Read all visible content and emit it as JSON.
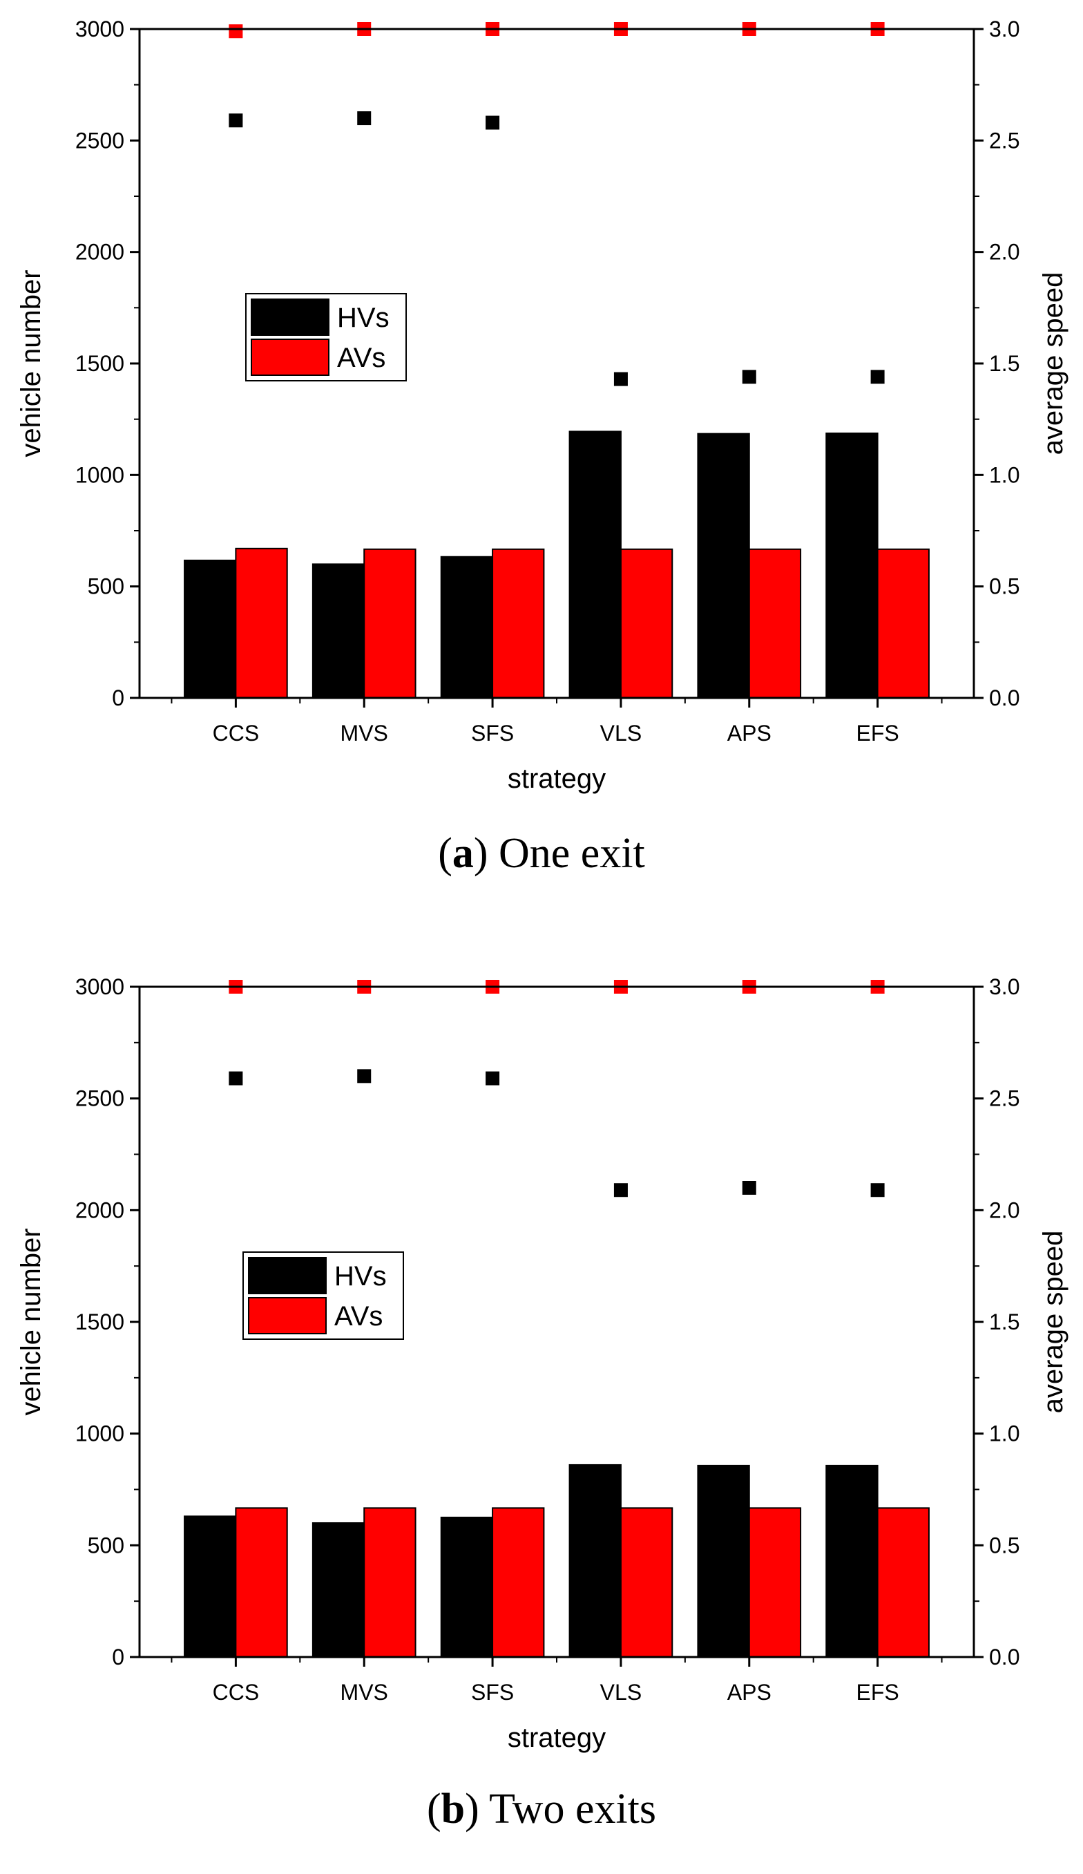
{
  "chart_data": [
    {
      "type": "bar",
      "caption_letter": "a",
      "caption_text": "One exit",
      "categories": [
        "CCS",
        "MVS",
        "SFS",
        "VLS",
        "APS",
        "EFS"
      ],
      "series": [
        {
          "name": "HVs",
          "values": [
            617,
            600,
            633,
            1195,
            1185,
            1187
          ],
          "color": "#000000"
        },
        {
          "name": "AVs",
          "values": [
            670,
            667,
            667,
            667,
            667,
            667
          ],
          "color": "#ff0000"
        }
      ],
      "scatter_series": [
        {
          "name": "average speed (black)",
          "values": [
            2.59,
            2.6,
            2.58,
            1.43,
            1.44,
            1.44
          ],
          "color": "#000000"
        },
        {
          "name": "average speed (red)",
          "values": [
            2.99,
            3.0,
            3.0,
            3.0,
            3.0,
            3.0
          ],
          "color": "#ff0000"
        }
      ],
      "xlabel": "strategy",
      "ylabel": "vehicle number",
      "y2label": "average speed",
      "ylim": [
        0,
        3000
      ],
      "y2lim": [
        0,
        3.0
      ],
      "yticks": [
        "0",
        "500",
        "1000",
        "1500",
        "2000",
        "2500",
        "3000"
      ],
      "y2ticks": [
        "0.0",
        "0.5",
        "1.0",
        "1.5",
        "2.0",
        "2.5",
        "3.0"
      ]
    },
    {
      "type": "bar",
      "caption_letter": "b",
      "caption_text": "Two exits",
      "categories": [
        "CCS",
        "MVS",
        "SFS",
        "VLS",
        "APS",
        "EFS"
      ],
      "series": [
        {
          "name": "HVs",
          "values": [
            630,
            600,
            625,
            860,
            857,
            857
          ],
          "color": "#000000"
        },
        {
          "name": "AVs",
          "values": [
            667,
            667,
            667,
            667,
            667,
            667
          ],
          "color": "#ff0000"
        }
      ],
      "scatter_series": [
        {
          "name": "average speed (black)",
          "values": [
            2.59,
            2.6,
            2.59,
            2.09,
            2.1,
            2.09
          ],
          "color": "#000000"
        },
        {
          "name": "average speed (red)",
          "values": [
            3.0,
            3.0,
            3.0,
            3.0,
            3.0,
            3.0
          ],
          "color": "#ff0000"
        }
      ],
      "xlabel": "strategy",
      "ylabel": "vehicle number",
      "y2label": "average speed",
      "ylim": [
        0,
        3000
      ],
      "y2lim": [
        0,
        3.0
      ],
      "yticks": [
        "0",
        "500",
        "1000",
        "1500",
        "2000",
        "2500",
        "3000"
      ],
      "y2ticks": [
        "0.0",
        "0.5",
        "1.0",
        "1.5",
        "2.0",
        "2.5",
        "3.0"
      ]
    }
  ]
}
